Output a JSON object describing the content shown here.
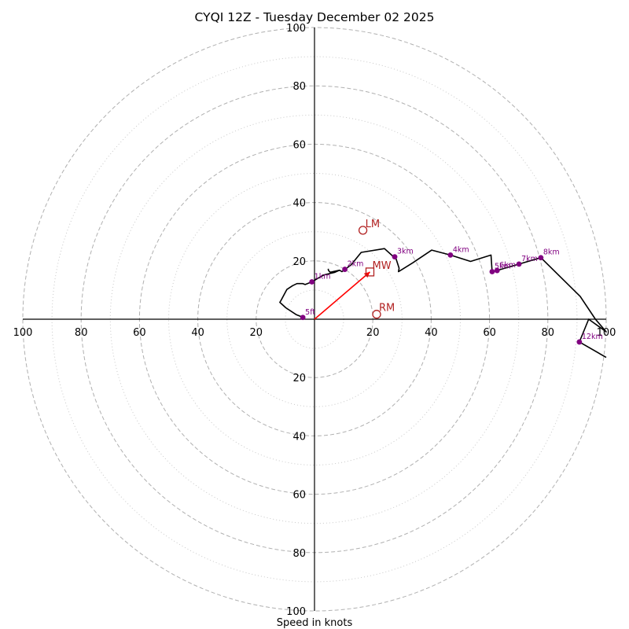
{
  "chart_data": {
    "type": "line",
    "subtype": "hodograph",
    "title": "CYQI 12Z - Tuesday December 02 2025",
    "xlabel": "Speed in knots",
    "ylabel": "",
    "xlim": [
      -100,
      100
    ],
    "ylim": [
      -100,
      100
    ],
    "ring_labels": {
      "x_left": [
        "100",
        "80",
        "60",
        "40",
        "20"
      ],
      "x_right": [
        "20",
        "40",
        "60",
        "80",
        "100"
      ],
      "y_top": [
        "20",
        "40",
        "60",
        "80",
        "100"
      ],
      "y_bottom": [
        "20",
        "40",
        "60",
        "80",
        "100"
      ]
    },
    "rings_major": [
      20,
      40,
      60,
      80,
      100
    ],
    "rings_minor": [
      10,
      30,
      50,
      70,
      90
    ],
    "colors": {
      "trace": "#000000",
      "height_points": "#800080",
      "storm_markers": "#b22222",
      "mean_wind_vector": "#ff0000",
      "ring_major": "#b0b0b0",
      "ring_minor": "#c8c8c8",
      "axis": "#000000"
    },
    "series": [
      {
        "name": "hodograph trace",
        "points": [
          [
            4.7,
            17.3
          ],
          [
            4.8,
            16.7
          ],
          [
            5.4,
            16.1
          ],
          [
            8.6,
            16.8
          ],
          [
            9.4,
            16.3
          ],
          [
            12.5,
            18.6
          ],
          [
            16.0,
            22.9
          ],
          [
            24.0,
            24.2
          ],
          [
            28.0,
            20.6
          ],
          [
            29.0,
            17.5
          ],
          [
            28.8,
            16.3
          ],
          [
            33.6,
            19.3
          ],
          [
            40.2,
            23.7
          ],
          [
            46.6,
            22.0
          ],
          [
            53.5,
            19.8
          ],
          [
            60.5,
            22.0
          ],
          [
            60.9,
            16.3
          ],
          [
            62.6,
            16.7
          ],
          [
            70.1,
            18.9
          ],
          [
            77.6,
            21.1
          ],
          [
            91.1,
            7.8
          ],
          [
            96.3,
            0.0
          ],
          [
            100.0,
            -4.3
          ],
          [
            94.0,
            0.0
          ],
          [
            90.8,
            -7.8
          ],
          [
            100.0,
            -13.1
          ]
        ],
        "lower_points": [
          [
            8.6,
            16.8
          ],
          [
            7.0,
            16.1
          ],
          [
            3.3,
            15.2
          ],
          [
            1.3,
            14.1
          ],
          [
            -0.9,
            12.8
          ],
          [
            -3.2,
            11.9
          ],
          [
            -4.0,
            12.2
          ],
          [
            -6.0,
            12.2
          ],
          [
            -7.5,
            11.5
          ],
          [
            -9.5,
            10.2
          ],
          [
            -11.5,
            6.4
          ],
          [
            -11.9,
            5.8
          ],
          [
            -9.8,
            3.9
          ],
          [
            -6.3,
            1.6
          ],
          [
            -4.1,
            0.7
          ],
          [
            -4.0,
            0.6
          ]
        ]
      }
    ],
    "height_markers": [
      {
        "label": "5ft",
        "u": -4.0,
        "v": 0.6
      },
      {
        "label": "1km",
        "u": -0.9,
        "v": 12.8
      },
      {
        "label": "2km",
        "u": 10.4,
        "v": 17.1
      },
      {
        "label": "3km",
        "u": 27.5,
        "v": 21.4
      },
      {
        "label": "4km",
        "u": 46.6,
        "v": 22.0
      },
      {
        "label": "5km",
        "u": 60.9,
        "v": 16.3
      },
      {
        "label": "6km",
        "u": 62.6,
        "v": 16.7
      },
      {
        "label": "7km",
        "u": 70.1,
        "v": 18.9
      },
      {
        "label": "8km",
        "u": 77.6,
        "v": 21.1
      },
      {
        "label": "12km",
        "u": 90.8,
        "v": -7.8
      }
    ],
    "storm_motion": [
      {
        "label": "LM",
        "u": 16.6,
        "v": 30.5,
        "shape": "circle"
      },
      {
        "label": "RM",
        "u": 21.3,
        "v": 1.7,
        "shape": "circle"
      },
      {
        "label": "MW",
        "u": 19.0,
        "v": 16.2,
        "shape": "square"
      }
    ],
    "mean_wind_vector": {
      "u": 19.0,
      "v": 16.2
    }
  }
}
